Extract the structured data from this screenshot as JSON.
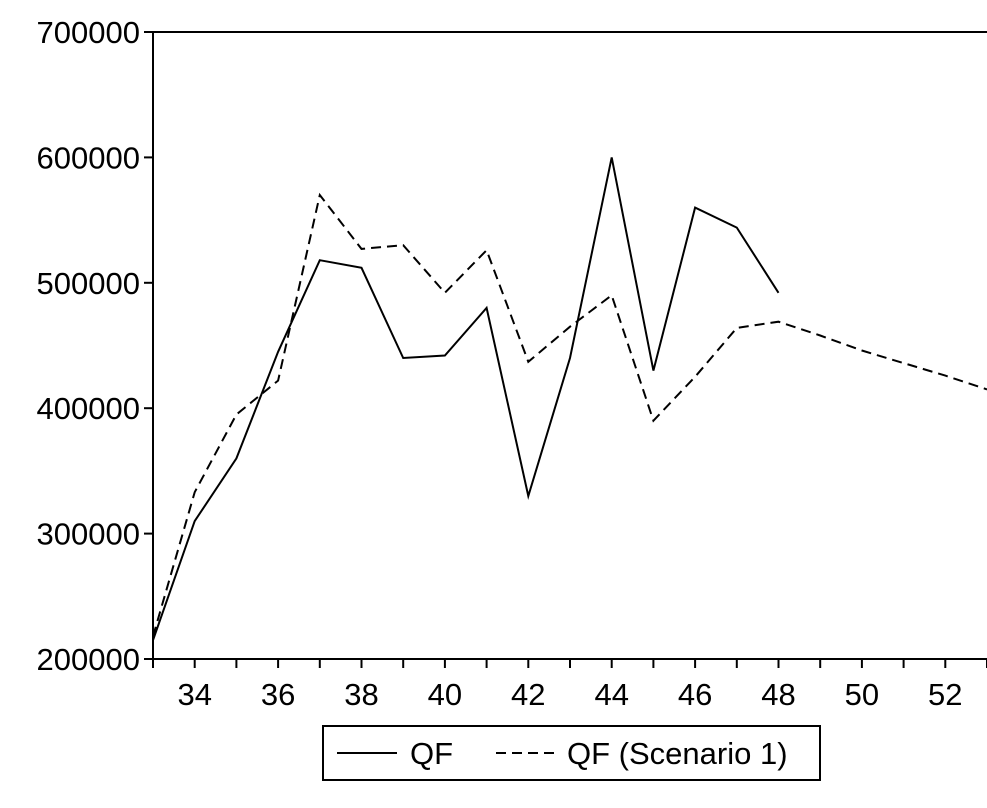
{
  "chart_data": {
    "type": "line",
    "title": "",
    "xlabel": "",
    "ylabel": "",
    "xlim": [
      33,
      53
    ],
    "ylim": [
      200000,
      700000
    ],
    "x_ticks": [
      34,
      36,
      38,
      40,
      42,
      44,
      46,
      48,
      50,
      52
    ],
    "x_tick_labels": [
      "34",
      "36",
      "38",
      "40",
      "42",
      "44",
      "46",
      "48",
      "50",
      "52"
    ],
    "y_ticks": [
      200000,
      300000,
      400000,
      500000,
      600000,
      700000
    ],
    "y_tick_labels": [
      "200000",
      "300000",
      "400000",
      "500000",
      "600000",
      "700000"
    ],
    "grid": false,
    "legend_position": "bottom-center",
    "series": [
      {
        "name": "QF",
        "line_style": "solid",
        "color": "#000000",
        "x": [
          33,
          34,
          35,
          36,
          37,
          38,
          39,
          40,
          41,
          42,
          43,
          44,
          45,
          46,
          47,
          48
        ],
        "y": [
          215000,
          310000,
          360000,
          445000,
          518000,
          512000,
          440000,
          442000,
          480000,
          330000,
          440000,
          600000,
          430000,
          560000,
          544000,
          492000
        ]
      },
      {
        "name": "QF (Scenario 1)",
        "line_style": "dashed",
        "color": "#000000",
        "x": [
          33,
          34,
          35,
          36,
          37,
          38,
          39,
          40,
          41,
          42,
          43,
          44,
          45,
          46,
          47,
          48,
          49,
          50,
          51,
          52,
          53
        ],
        "y": [
          218000,
          333000,
          395000,
          422000,
          570000,
          527000,
          530000,
          492000,
          526000,
          437000,
          465000,
          490000,
          390000,
          425000,
          464000,
          469000,
          458000,
          446000,
          436000,
          426000,
          415000
        ]
      }
    ]
  }
}
